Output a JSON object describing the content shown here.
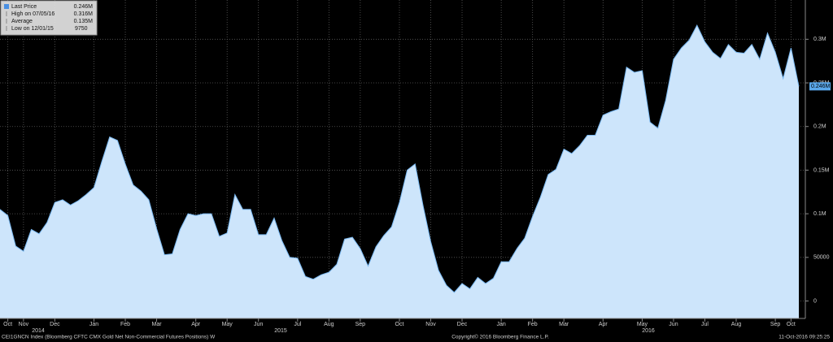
{
  "chart_data": {
    "type": "area",
    "series": [
      {
        "name": "Last Price",
        "color": "#7ab8f0",
        "fill": "#cde5fb",
        "values": [
          105000,
          98000,
          63000,
          57000,
          82000,
          77000,
          90000,
          113000,
          116000,
          110000,
          115000,
          122000,
          130000,
          160000,
          188000,
          184000,
          157000,
          133000,
          126000,
          116000,
          83000,
          53000,
          54000,
          82000,
          100000,
          98000,
          100000,
          100000,
          74000,
          78000,
          122000,
          105000,
          105000,
          76000,
          76000,
          95000,
          69000,
          50000,
          49000,
          28000,
          25000,
          30000,
          33000,
          42000,
          71000,
          73000,
          60000,
          40000,
          62000,
          75000,
          85000,
          113000,
          150000,
          157000,
          110000,
          68000,
          35000,
          18000,
          9750,
          20000,
          14000,
          27000,
          20000,
          26000,
          45000,
          45000,
          60000,
          72000,
          97000,
          119000,
          145000,
          151000,
          174000,
          169000,
          178000,
          190000,
          190000,
          213000,
          217000,
          220000,
          268000,
          262000,
          264000,
          205000,
          198000,
          230000,
          277000,
          290000,
          299000,
          316000,
          297000,
          285000,
          278000,
          294000,
          285000,
          284000,
          294000,
          277000,
          307000,
          285000,
          255000,
          290000,
          246000
        ]
      }
    ],
    "categories": [
      null,
      "Oct",
      null,
      "Nov",
      null,
      null,
      null,
      "Dec",
      null,
      null,
      null,
      null,
      "Jan",
      null,
      null,
      null,
      "Feb",
      null,
      null,
      null,
      "Mar",
      null,
      null,
      null,
      null,
      "Apr",
      null,
      null,
      null,
      "May",
      null,
      null,
      null,
      "Jun",
      null,
      null,
      null,
      null,
      "Jul",
      null,
      null,
      null,
      "Aug",
      null,
      null,
      null,
      "Sep",
      null,
      null,
      null,
      null,
      "Oct",
      null,
      null,
      null,
      "Nov",
      null,
      null,
      null,
      "Dec",
      null,
      null,
      null,
      null,
      "Jan",
      null,
      null,
      null,
      "Feb",
      null,
      null,
      null,
      "Mar",
      null,
      null,
      null,
      null,
      "Apr",
      null,
      null,
      null,
      null,
      "May",
      null,
      null,
      null,
      "Jun",
      null,
      null,
      null,
      "Jul",
      null,
      null,
      null,
      "Aug",
      null,
      null,
      null,
      null,
      "Sep",
      null,
      "Oct",
      null
    ],
    "x_groups": [
      "2014",
      "2015",
      "2016"
    ],
    "ylim": [
      -20000,
      345000
    ],
    "yticks": [
      0,
      50000,
      {
        "value": 100000,
        "label": "0.1M"
      },
      {
        "value": 150000,
        "label": "0.15M"
      },
      {
        "value": 200000,
        "label": "0.2M"
      },
      {
        "value": 250000,
        "label": "0.25M"
      },
      {
        "value": 300000,
        "label": "0.3M"
      }
    ],
    "grid": true,
    "legend": [
      {
        "name": "Last Price",
        "value": 246000,
        "value_label": "0.246M"
      },
      {
        "name": "High on 07/05/16",
        "value": 316000,
        "value_label": "0.316M"
      },
      {
        "name": "Average",
        "value": 135000,
        "value_label": "0.135M"
      },
      {
        "name": "Low on 12/01/15",
        "value": 9750
      }
    ],
    "footer": {
      "left": "CEI1GNCN Index (Bloomberg CFTC CMX Gold Net Non-Commercial Futures Positions)  W",
      "center": "Copyright© 2016 Bloomberg Finance L.P.",
      "right": "11-Oct-2016 09:25:25"
    }
  }
}
